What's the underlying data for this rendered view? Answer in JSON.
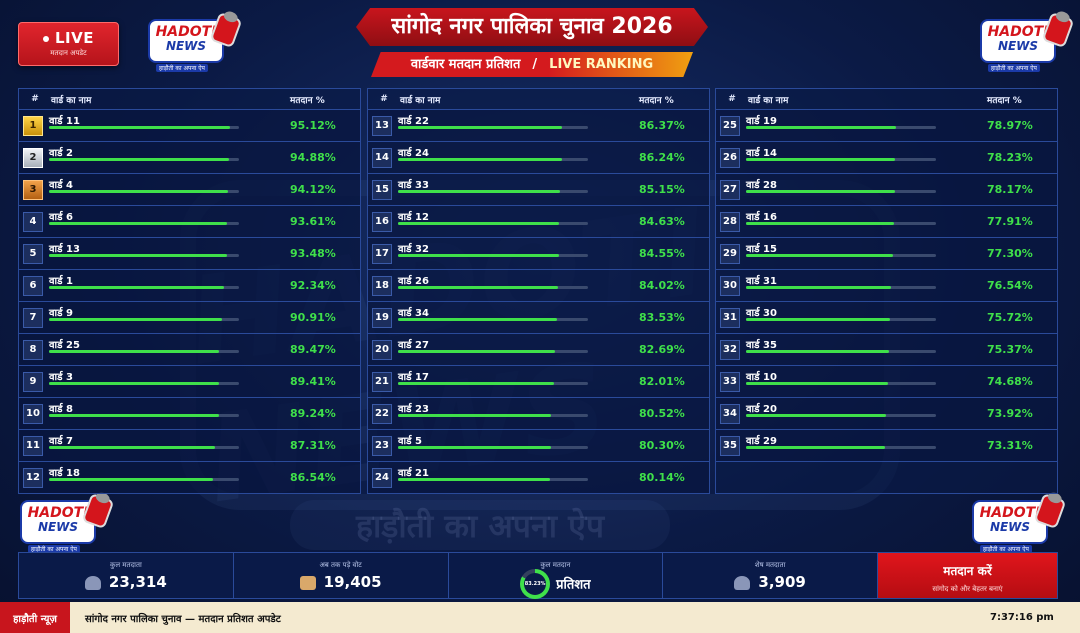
{
  "header": {
    "live_label": "LIVE",
    "live_sub": "मतदान अपडेट",
    "title": "सांगोद नगर पालिका चुनाव 2026",
    "subtitle_left": "वार्डवार मतदान प्रतिशत",
    "subtitle_sep": "/",
    "subtitle_right": "LIVE RANKING"
  },
  "logo": {
    "line1": "HADOTI",
    "line2": "NEWS",
    "tagline": "हाड़ौती का अपना ऐप"
  },
  "watermark": {
    "big": "HADOTI NEWS",
    "tagline": "हाड़ौती का अपना ऐप"
  },
  "columns_header": {
    "rank": "#",
    "name": "वार्ड का नाम",
    "pct": "मतदान %"
  },
  "columns": [
    [
      {
        "rank": "1",
        "name": "वार्ड 11",
        "pct": "95.12%",
        "value": 95.12,
        "medal": "gold"
      },
      {
        "rank": "2",
        "name": "वार्ड 2",
        "pct": "94.88%",
        "value": 94.88,
        "medal": "silver"
      },
      {
        "rank": "3",
        "name": "वार्ड 4",
        "pct": "94.12%",
        "value": 94.12,
        "medal": "bronze"
      },
      {
        "rank": "4",
        "name": "वार्ड 6",
        "pct": "93.61%",
        "value": 93.61,
        "medal": ""
      },
      {
        "rank": "5",
        "name": "वार्ड 13",
        "pct": "93.48%",
        "value": 93.48,
        "medal": ""
      },
      {
        "rank": "6",
        "name": "वार्ड 1",
        "pct": "92.34%",
        "value": 92.34,
        "medal": ""
      },
      {
        "rank": "7",
        "name": "वार्ड 9",
        "pct": "90.91%",
        "value": 90.91,
        "medal": ""
      },
      {
        "rank": "8",
        "name": "वार्ड 25",
        "pct": "89.47%",
        "value": 89.47,
        "medal": ""
      },
      {
        "rank": "9",
        "name": "वार्ड 3",
        "pct": "89.41%",
        "value": 89.41,
        "medal": ""
      },
      {
        "rank": "10",
        "name": "वार्ड 8",
        "pct": "89.24%",
        "value": 89.24,
        "medal": ""
      },
      {
        "rank": "11",
        "name": "वार्ड 7",
        "pct": "87.31%",
        "value": 87.31,
        "medal": ""
      },
      {
        "rank": "12",
        "name": "वार्ड 18",
        "pct": "86.54%",
        "value": 86.54,
        "medal": ""
      }
    ],
    [
      {
        "rank": "13",
        "name": "वार्ड 22",
        "pct": "86.37%",
        "value": 86.37,
        "medal": ""
      },
      {
        "rank": "14",
        "name": "वार्ड 24",
        "pct": "86.24%",
        "value": 86.24,
        "medal": ""
      },
      {
        "rank": "15",
        "name": "वार्ड 33",
        "pct": "85.15%",
        "value": 85.15,
        "medal": ""
      },
      {
        "rank": "16",
        "name": "वार्ड 12",
        "pct": "84.63%",
        "value": 84.63,
        "medal": ""
      },
      {
        "rank": "17",
        "name": "वार्ड 32",
        "pct": "84.55%",
        "value": 84.55,
        "medal": ""
      },
      {
        "rank": "18",
        "name": "वार्ड 26",
        "pct": "84.02%",
        "value": 84.02,
        "medal": ""
      },
      {
        "rank": "19",
        "name": "वार्ड 34",
        "pct": "83.53%",
        "value": 83.53,
        "medal": ""
      },
      {
        "rank": "20",
        "name": "वार्ड 27",
        "pct": "82.69%",
        "value": 82.69,
        "medal": ""
      },
      {
        "rank": "21",
        "name": "वार्ड 17",
        "pct": "82.01%",
        "value": 82.01,
        "medal": ""
      },
      {
        "rank": "22",
        "name": "वार्ड 23",
        "pct": "80.52%",
        "value": 80.52,
        "medal": ""
      },
      {
        "rank": "23",
        "name": "वार्ड 5",
        "pct": "80.30%",
        "value": 80.3,
        "medal": ""
      },
      {
        "rank": "24",
        "name": "वार्ड 21",
        "pct": "80.14%",
        "value": 80.14,
        "medal": ""
      }
    ],
    [
      {
        "rank": "25",
        "name": "वार्ड 19",
        "pct": "78.97%",
        "value": 78.97,
        "medal": ""
      },
      {
        "rank": "26",
        "name": "वार्ड 14",
        "pct": "78.23%",
        "value": 78.23,
        "medal": ""
      },
      {
        "rank": "27",
        "name": "वार्ड 28",
        "pct": "78.17%",
        "value": 78.17,
        "medal": ""
      },
      {
        "rank": "28",
        "name": "वार्ड 16",
        "pct": "77.91%",
        "value": 77.91,
        "medal": ""
      },
      {
        "rank": "29",
        "name": "वार्ड 15",
        "pct": "77.30%",
        "value": 77.3,
        "medal": ""
      },
      {
        "rank": "30",
        "name": "वार्ड 31",
        "pct": "76.54%",
        "value": 76.54,
        "medal": ""
      },
      {
        "rank": "31",
        "name": "वार्ड 30",
        "pct": "75.72%",
        "value": 75.72,
        "medal": ""
      },
      {
        "rank": "32",
        "name": "वार्ड 35",
        "pct": "75.37%",
        "value": 75.37,
        "medal": ""
      },
      {
        "rank": "33",
        "name": "वार्ड 10",
        "pct": "74.68%",
        "value": 74.68,
        "medal": ""
      },
      {
        "rank": "34",
        "name": "वार्ड 20",
        "pct": "73.92%",
        "value": 73.92,
        "medal": ""
      },
      {
        "rank": "35",
        "name": "वार्ड 29",
        "pct": "73.31%",
        "value": 73.31,
        "medal": ""
      }
    ]
  ],
  "stats": {
    "total_voters_label": "कुल मतदाता",
    "total_voters": "23,314",
    "votes_cast_label": "अब तक पड़े वोट",
    "votes_cast": "19,405",
    "turnout_label": "कुल मतदान",
    "turnout_pct": "83.23%",
    "turnout_value": 83.23,
    "turnout_word": "प्रतिशत",
    "remaining_label": "शेष मतदाता",
    "remaining": "3,909",
    "cta_title": "मतदान करें",
    "cta_sub": "सांगोद को और बेहतर बनाएं"
  },
  "ticker": {
    "brand": "हाड़ौती न्यूज़",
    "message": "सांगोद नगर पालिका चुनाव — मतदान प्रतिशत अपडेट",
    "time": "7:37:16 pm"
  },
  "colors": {
    "accent_red": "#c8151d",
    "bar_green": "#3fe04a",
    "gold": "#ffd447",
    "navy": "#0b1a45"
  }
}
